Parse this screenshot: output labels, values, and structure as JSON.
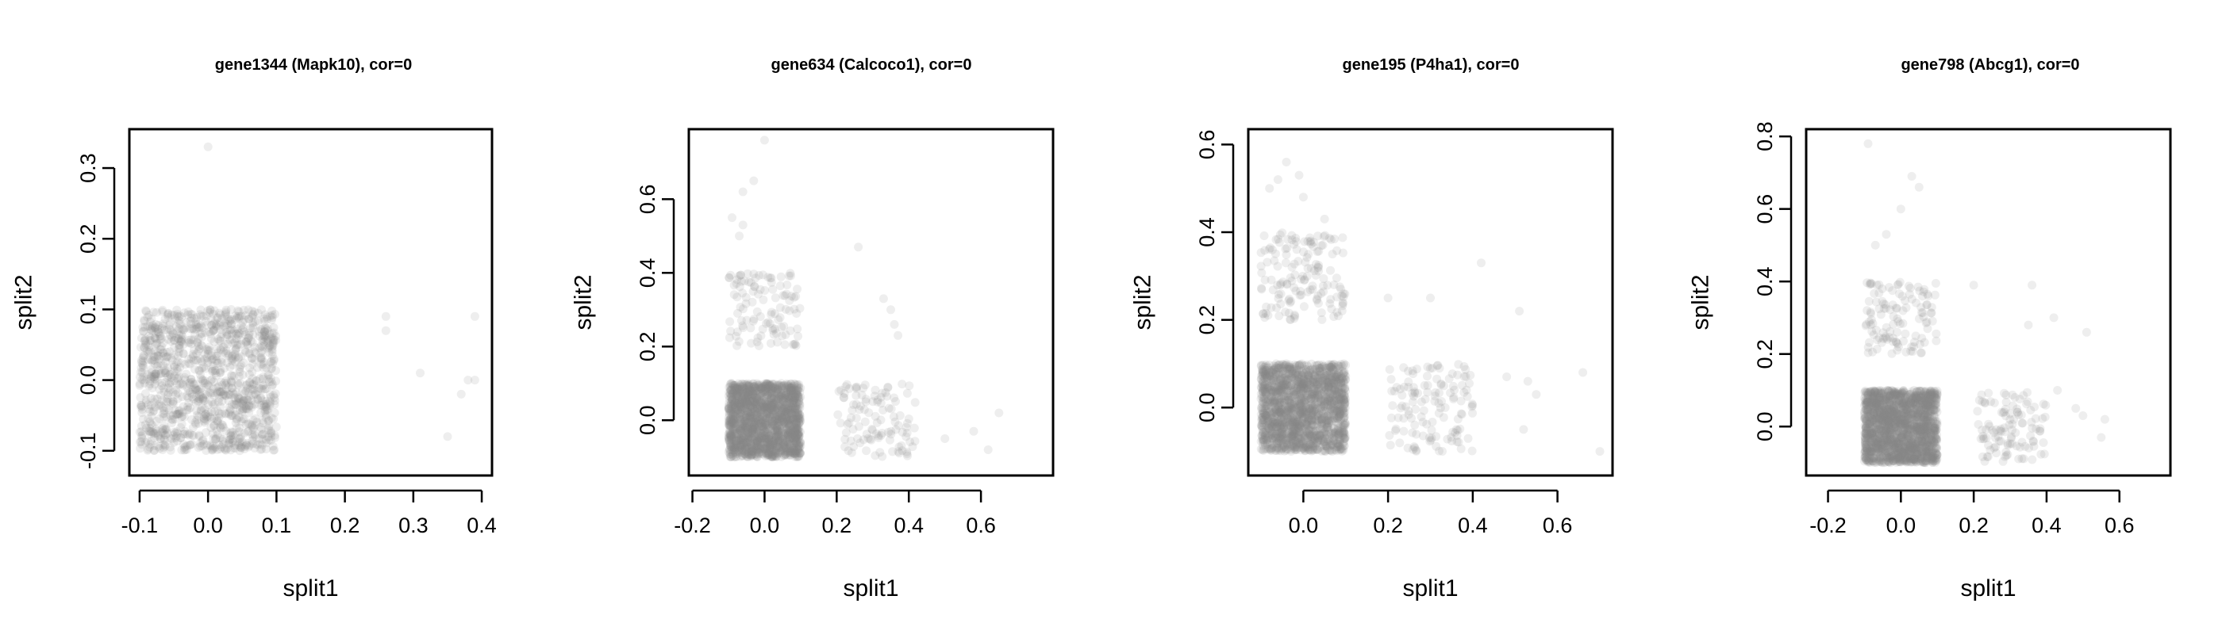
{
  "chart_data": [
    {
      "type": "scatter",
      "title": "gene1344 (Mapk10), cor=0",
      "xlabel": "split1",
      "ylabel": "split2",
      "xlim": [
        -0.115,
        0.415
      ],
      "ylim": [
        -0.135,
        0.355
      ],
      "xticks": [
        -0.1,
        0.0,
        0.1,
        0.2,
        0.3,
        0.4
      ],
      "xtick_labels": [
        "-0.1",
        "0.0",
        "0.1",
        "0.2",
        "0.3",
        "0.4"
      ],
      "yticks": [
        -0.1,
        0.0,
        0.1,
        0.2,
        0.3
      ],
      "ytick_labels": [
        "-0.1",
        "0.0",
        "0.1",
        "0.2",
        "0.3"
      ],
      "grid": false,
      "point_color": "#8a8a8a",
      "clusters": [
        {
          "x_range": [
            -0.1,
            0.1
          ],
          "y_range": [
            -0.1,
            0.1
          ],
          "n": 1200
        }
      ],
      "points": [
        [
          0.0,
          0.33
        ],
        [
          0.26,
          0.09
        ],
        [
          0.26,
          0.07
        ],
        [
          0.31,
          0.01
        ],
        [
          0.35,
          -0.08
        ],
        [
          0.37,
          -0.02
        ],
        [
          0.38,
          0.0
        ],
        [
          0.39,
          0.0
        ],
        [
          0.39,
          0.09
        ]
      ]
    },
    {
      "type": "scatter",
      "title": "gene634 (Calcoco1), cor=0",
      "xlabel": "split1",
      "ylabel": "split2",
      "xlim": [
        -0.21,
        0.8
      ],
      "ylim": [
        -0.15,
        0.79
      ],
      "xticks": [
        -0.2,
        0.0,
        0.2,
        0.4,
        0.6
      ],
      "xtick_labels": [
        "-0.2",
        "0.0",
        "0.2",
        "0.4",
        "0.6"
      ],
      "yticks": [
        0.0,
        0.2,
        0.4,
        0.6
      ],
      "ytick_labels": [
        "0.0",
        "0.2",
        "0.4",
        "0.6"
      ],
      "grid": false,
      "point_color": "#8a8a8a",
      "clusters": [
        {
          "x_range": [
            -0.1,
            0.1
          ],
          "y_range": [
            -0.1,
            0.1
          ],
          "n": 1800
        },
        {
          "x_range": [
            -0.1,
            0.1
          ],
          "y_range": [
            0.2,
            0.4
          ],
          "n": 110
        },
        {
          "x_range": [
            0.2,
            0.42
          ],
          "y_range": [
            -0.1,
            0.1
          ],
          "n": 110
        }
      ],
      "points": [
        [
          0.0,
          0.76
        ],
        [
          -0.03,
          0.65
        ],
        [
          -0.06,
          0.62
        ],
        [
          -0.09,
          0.55
        ],
        [
          -0.06,
          0.53
        ],
        [
          -0.07,
          0.5
        ],
        [
          0.26,
          0.47
        ],
        [
          0.33,
          0.33
        ],
        [
          0.35,
          0.3
        ],
        [
          0.36,
          0.26
        ],
        [
          0.37,
          0.23
        ],
        [
          0.5,
          -0.05
        ],
        [
          0.58,
          -0.03
        ],
        [
          0.62,
          -0.08
        ],
        [
          0.65,
          0.02
        ]
      ]
    },
    {
      "type": "scatter",
      "title": "gene195 (P4ha1), cor=0",
      "xlabel": "split1",
      "ylabel": "split2",
      "xlim": [
        -0.13,
        0.73
      ],
      "ylim": [
        -0.155,
        0.635
      ],
      "xticks": [
        0.0,
        0.2,
        0.4,
        0.6
      ],
      "xtick_labels": [
        "0.0",
        "0.2",
        "0.4",
        "0.6"
      ],
      "yticks": [
        0.0,
        0.2,
        0.4,
        0.6
      ],
      "ytick_labels": [
        "0.0",
        "0.2",
        "0.4",
        "0.6"
      ],
      "grid": false,
      "point_color": "#8a8a8a",
      "clusters": [
        {
          "x_range": [
            -0.1,
            0.1
          ],
          "y_range": [
            -0.1,
            0.1
          ],
          "n": 1800
        },
        {
          "x_range": [
            -0.1,
            0.1
          ],
          "y_range": [
            0.2,
            0.4
          ],
          "n": 150
        },
        {
          "x_range": [
            0.2,
            0.4
          ],
          "y_range": [
            -0.1,
            0.1
          ],
          "n": 130
        }
      ],
      "points": [
        [
          -0.04,
          0.56
        ],
        [
          -0.01,
          0.53
        ],
        [
          -0.06,
          0.52
        ],
        [
          -0.08,
          0.5
        ],
        [
          0.0,
          0.48
        ],
        [
          0.05,
          0.43
        ],
        [
          0.42,
          0.33
        ],
        [
          0.2,
          0.25
        ],
        [
          0.3,
          0.25
        ],
        [
          0.51,
          0.22
        ],
        [
          0.48,
          0.07
        ],
        [
          0.53,
          0.06
        ],
        [
          0.55,
          0.03
        ],
        [
          0.52,
          -0.05
        ],
        [
          0.66,
          0.08
        ],
        [
          0.7,
          -0.1
        ]
      ]
    },
    {
      "type": "scatter",
      "title": "gene798 (Abcg1), cor=0",
      "xlabel": "split1",
      "ylabel": "split2",
      "xlim": [
        -0.26,
        0.74
      ],
      "ylim": [
        -0.135,
        0.82
      ],
      "xticks": [
        -0.2,
        0.0,
        0.2,
        0.4,
        0.6
      ],
      "xtick_labels": [
        "-0.2",
        "0.0",
        "0.2",
        "0.4",
        "0.6"
      ],
      "yticks": [
        0.0,
        0.2,
        0.4,
        0.6,
        0.8
      ],
      "ytick_labels": [
        "0.0",
        "0.2",
        "0.4",
        "0.6",
        "0.8"
      ],
      "grid": false,
      "point_color": "#8a8a8a",
      "clusters": [
        {
          "x_range": [
            -0.1,
            0.1
          ],
          "y_range": [
            -0.1,
            0.1
          ],
          "n": 1800
        },
        {
          "x_range": [
            -0.1,
            0.1
          ],
          "y_range": [
            0.2,
            0.4
          ],
          "n": 120
        },
        {
          "x_range": [
            0.2,
            0.4
          ],
          "y_range": [
            -0.1,
            0.1
          ],
          "n": 110
        }
      ],
      "points": [
        [
          -0.09,
          0.78
        ],
        [
          0.03,
          0.69
        ],
        [
          0.05,
          0.66
        ],
        [
          0.0,
          0.6
        ],
        [
          -0.04,
          0.53
        ],
        [
          -0.07,
          0.5
        ],
        [
          0.2,
          0.39
        ],
        [
          0.36,
          0.39
        ],
        [
          0.42,
          0.3
        ],
        [
          0.35,
          0.28
        ],
        [
          0.51,
          0.26
        ],
        [
          0.43,
          0.1
        ],
        [
          0.48,
          0.05
        ],
        [
          0.5,
          0.03
        ],
        [
          0.56,
          0.02
        ],
        [
          0.55,
          -0.03
        ]
      ]
    }
  ]
}
